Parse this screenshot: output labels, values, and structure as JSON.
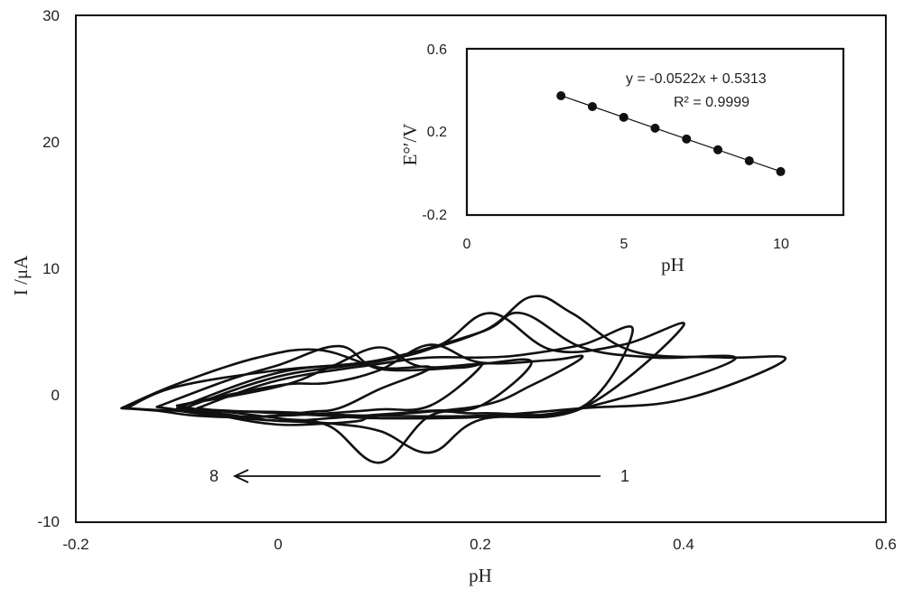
{
  "chart_data": [
    {
      "type": "line",
      "title": "",
      "xlabel": "pH",
      "ylabel": "I /μA",
      "xlim": [
        -0.2,
        0.6
      ],
      "ylim": [
        -10,
        30
      ],
      "xticks": [
        "-0.2",
        "0",
        "0.2",
        "0.4",
        "0.6"
      ],
      "yticks": [
        "-10",
        "0",
        "10",
        "20",
        "30"
      ],
      "grid": false,
      "arrow": {
        "from_label": "1",
        "to_label": "8",
        "from_x": 0.32,
        "to_x": -0.05,
        "y": -6.4
      },
      "series": [
        {
          "x": [
            -0.15,
            -0.1,
            0.0,
            0.05,
            0.1,
            0.2,
            0.3,
            0.4,
            0.5,
            0.44,
            0.35,
            0.29,
            0.25,
            0.2,
            0.1,
            0.0,
            -0.1,
            -0.15
          ],
          "y": [
            -1.0,
            -1.2,
            -1.3,
            -1.5,
            -1.6,
            -1.6,
            -1.0,
            -0.3,
            2.8,
            3.0,
            3.5,
            6.5,
            7.8,
            5.0,
            2.8,
            2.0,
            0.7,
            -1.0
          ]
        },
        {
          "x": [
            -0.1,
            -0.05,
            0.0,
            0.05,
            0.1,
            0.2,
            0.3,
            0.45,
            0.37,
            0.3,
            0.24,
            0.2,
            0.1,
            0.0,
            -0.1
          ],
          "y": [
            -1.0,
            -1.2,
            -1.4,
            -1.6,
            -1.8,
            -1.7,
            -1.0,
            2.8,
            3.0,
            3.8,
            6.5,
            5.0,
            2.8,
            1.8,
            -1.0
          ]
        },
        {
          "x": [
            -0.1,
            -0.05,
            0.0,
            0.05,
            0.1,
            0.15,
            0.2,
            0.3,
            0.4,
            0.34,
            0.27,
            0.21,
            0.16,
            0.1,
            0.0,
            -0.1
          ],
          "y": [
            -1.2,
            -1.7,
            -2.0,
            -2.2,
            -2.8,
            -4.5,
            -1.9,
            -1.0,
            5.5,
            4.0,
            3.6,
            6.5,
            4.0,
            2.7,
            1.5,
            -1.2
          ]
        },
        {
          "x": [
            -0.08,
            0.0,
            0.05,
            0.1,
            0.15,
            0.2,
            0.3,
            0.35,
            0.3,
            0.24,
            0.2,
            0.15,
            0.1,
            0.0,
            -0.08
          ],
          "y": [
            -1.0,
            -1.8,
            -2.4,
            -5.3,
            -1.6,
            -1.4,
            -0.9,
            5.2,
            4.0,
            3.2,
            3.0,
            3.0,
            2.5,
            1.2,
            -1.0
          ]
        },
        {
          "x": [
            -0.1,
            -0.05,
            0.0,
            0.05,
            0.08,
            0.1,
            0.2,
            0.25,
            0.3,
            0.27,
            0.2,
            0.15,
            0.1,
            0.05,
            0.0,
            -0.1
          ],
          "y": [
            -0.8,
            -1.7,
            -2.3,
            -2.2,
            -2.0,
            -1.6,
            -0.8,
            0.8,
            3.0,
            2.8,
            2.6,
            4.0,
            2.0,
            1.0,
            0.8,
            -0.8
          ]
        },
        {
          "x": [
            -0.1,
            -0.05,
            0.0,
            0.05,
            0.1,
            0.15,
            0.2,
            0.25,
            0.2,
            0.14,
            0.1,
            0.05,
            0.0,
            -0.1
          ],
          "y": [
            -0.8,
            -1.5,
            -2.0,
            -1.8,
            -1.5,
            -1.2,
            -0.8,
            2.6,
            2.5,
            2.3,
            3.8,
            2.2,
            0.7,
            -0.8
          ]
        },
        {
          "x": [
            -0.12,
            -0.05,
            0.0,
            0.05,
            0.1,
            0.15,
            0.2,
            0.18,
            0.1,
            0.06,
            0.0,
            -0.05,
            -0.12
          ],
          "y": [
            -0.9,
            -1.6,
            -1.6,
            -1.4,
            -1.1,
            -0.8,
            2.3,
            2.2,
            2.1,
            3.9,
            2.4,
            1.2,
            -0.9
          ]
        },
        {
          "x": [
            -0.155,
            -0.12,
            -0.08,
            -0.02,
            0.03,
            0.06,
            0.1,
            0.15,
            0.1,
            0.04,
            -0.02,
            -0.1,
            -0.155
          ],
          "y": [
            -1.0,
            -1.2,
            -1.6,
            -1.7,
            -1.3,
            -1.0,
            0.5,
            2.2,
            2.2,
            3.6,
            3.0,
            0.9,
            -1.0
          ]
        }
      ]
    },
    {
      "type": "scatter",
      "title": "",
      "xlabel": "pH",
      "ylabel": "E°′/V",
      "xlim": [
        0,
        12
      ],
      "ylim": [
        -0.2,
        0.6
      ],
      "xticks": [
        "0",
        "5",
        "10"
      ],
      "yticks": [
        "-0.2",
        "0.2",
        "0.6"
      ],
      "grid": false,
      "x": [
        3,
        4,
        5,
        6,
        7,
        8,
        9,
        10
      ],
      "y": [
        0.374,
        0.322,
        0.27,
        0.218,
        0.166,
        0.114,
        0.061,
        0.009
      ],
      "trendline": {
        "slope": -0.0522,
        "intercept": 0.5313
      },
      "annotations": [
        "y = -0.0522x + 0.5313",
        "R² = 0.9999"
      ]
    }
  ]
}
